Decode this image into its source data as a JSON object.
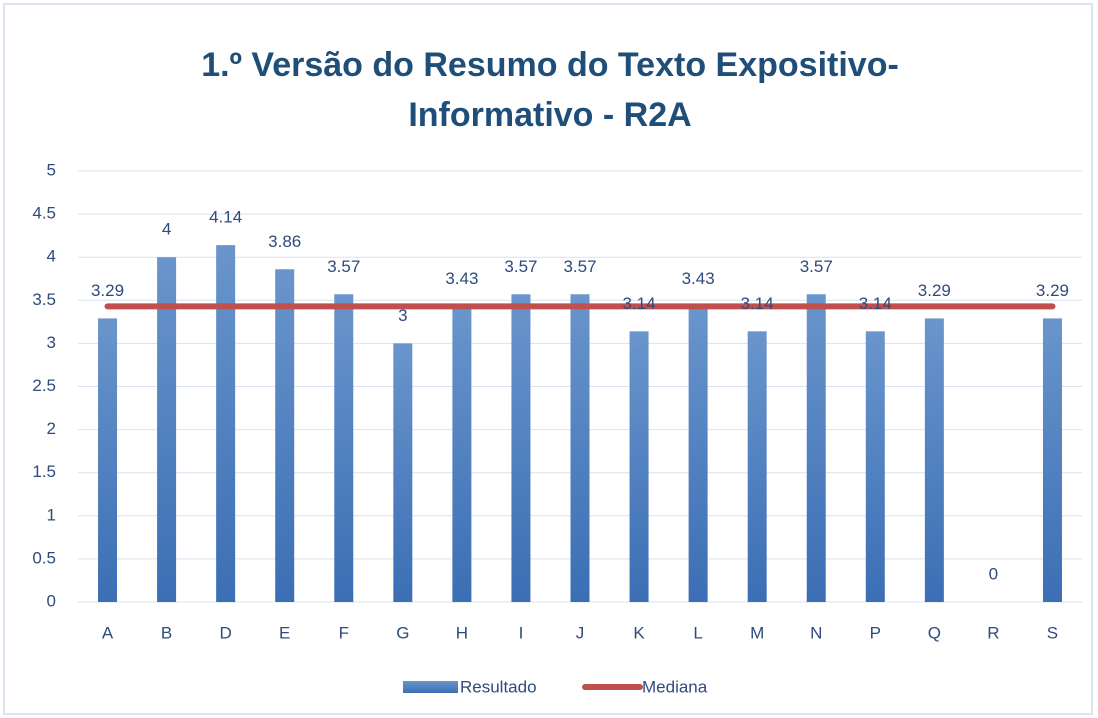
{
  "chart_data": {
    "type": "bar",
    "title": "1.º Versão do Resumo do Texto Expositivo-Informativo - R2A",
    "categories": [
      "A",
      "B",
      "D",
      "E",
      "F",
      "G",
      "H",
      "I",
      "J",
      "K",
      "L",
      "M",
      "N",
      "P",
      "Q",
      "R",
      "S"
    ],
    "series": [
      {
        "name": "Resultado",
        "type": "bar",
        "color": "#4a7ebb",
        "values": [
          3.29,
          4,
          4.14,
          3.86,
          3.57,
          3,
          3.43,
          3.57,
          3.57,
          3.14,
          3.43,
          3.14,
          3.57,
          3.14,
          3.29,
          0,
          3.29
        ]
      },
      {
        "name": "Mediana",
        "type": "line",
        "color": "#c0504d",
        "values": [
          3.43,
          3.43,
          3.43,
          3.43,
          3.43,
          3.43,
          3.43,
          3.43,
          3.43,
          3.43,
          3.43,
          3.43,
          3.43,
          3.43,
          3.43,
          3.43,
          3.43
        ]
      }
    ],
    "ylim": [
      0,
      5
    ],
    "yticks": [
      0,
      0.5,
      1,
      1.5,
      2,
      2.5,
      3,
      3.5,
      4,
      4.5,
      5
    ],
    "grid": true,
    "legend": "bottom"
  }
}
